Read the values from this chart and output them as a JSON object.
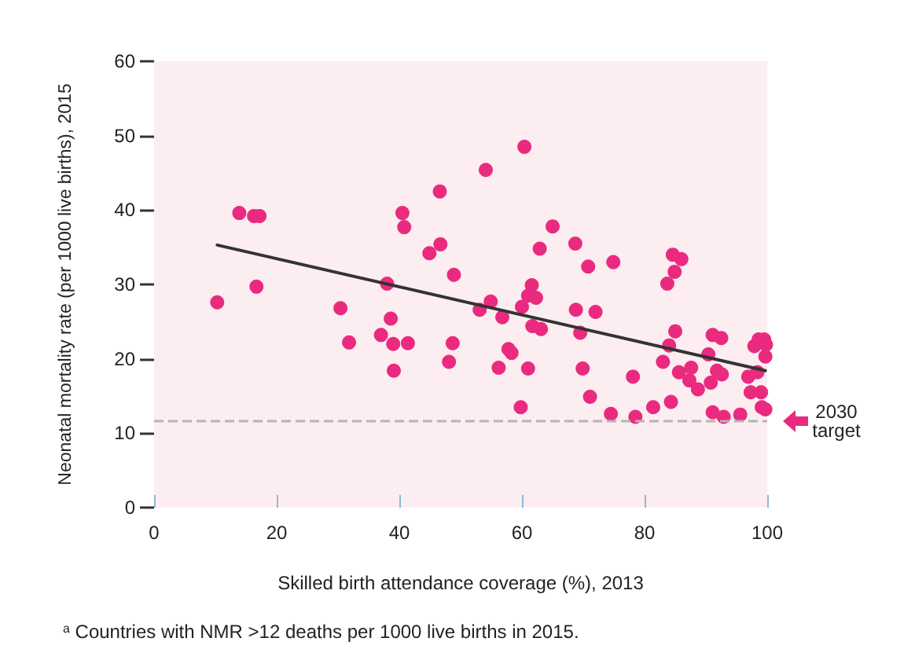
{
  "chart_data": {
    "type": "scatter",
    "xlabel": "Skilled birth attendance coverage (%), 2013",
    "ylabel": "Neonatal mortality rate (per 1000 live births), 2015",
    "xlim": [
      0,
      100
    ],
    "ylim": [
      0,
      60
    ],
    "xticks": [
      0,
      20,
      40,
      60,
      80,
      100
    ],
    "yticks": [
      0,
      10,
      20,
      30,
      40,
      50,
      60
    ],
    "grid": false,
    "marker": "circle",
    "annotations": [
      "$^{a}$ Countries with NMR >12 deaths per 1000 live births in 2015."
    ],
    "ref_lines": [
      {
        "axis": "y",
        "value": 11.6,
        "label": "2030\ntarget",
        "color": "#b4b4b4",
        "line_style": "dashed"
      }
    ],
    "series": [
      {
        "color": "#ea2a7f",
        "x": [
          10.3,
          13.9,
          16.3,
          17.2,
          16.7,
          30.4,
          31.8,
          38.0,
          38.6,
          37.0,
          39.0,
          41.4,
          39.1,
          40.5,
          40.8,
          46.6,
          46.7,
          44.9,
          48.9,
          48.7,
          48.1,
          60.4,
          54.1,
          65.0,
          62.9,
          68.7,
          70.8,
          74.9,
          61.6,
          61.0,
          62.3,
          60.0,
          54.9,
          53.1,
          56.8,
          61.7,
          63.1,
          68.8,
          72.0,
          69.5,
          57.8,
          58.3,
          56.2,
          61.0,
          69.9,
          71.1,
          59.8,
          74.5,
          78.5,
          78.1,
          81.4,
          84.3,
          83.0,
          84.0,
          85.0,
          83.7,
          84.9,
          84.6,
          86.0,
          85.6,
          87.6,
          87.3,
          88.7,
          90.4,
          91.1,
          92.5,
          90.8,
          91.8,
          92.6,
          91.1,
          92.9,
          95.6,
          96.9,
          97.3,
          99.0,
          98.4,
          97.9,
          98.6,
          99.5,
          99.8,
          99.7,
          99.1,
          99.7
        ],
        "values": [
          27.6,
          39.6,
          39.2,
          39.2,
          29.7,
          26.8,
          22.2,
          30.1,
          25.4,
          23.2,
          22.0,
          22.1,
          18.4,
          39.6,
          37.7,
          42.5,
          35.4,
          34.2,
          31.3,
          22.1,
          19.6,
          48.5,
          45.4,
          37.8,
          34.8,
          35.5,
          32.4,
          33.0,
          29.9,
          28.5,
          28.2,
          27.0,
          27.7,
          26.6,
          25.6,
          24.4,
          24.0,
          26.6,
          26.3,
          23.5,
          21.3,
          20.8,
          18.8,
          18.7,
          18.7,
          14.9,
          13.5,
          12.6,
          12.2,
          17.6,
          13.5,
          14.2,
          19.6,
          21.8,
          23.7,
          30.1,
          31.7,
          34.0,
          33.4,
          18.2,
          18.8,
          17.1,
          15.9,
          20.6,
          23.2,
          22.8,
          16.8,
          18.4,
          17.9,
          12.8,
          12.2,
          12.5,
          17.6,
          15.5,
          15.5,
          18.2,
          21.7,
          22.6,
          22.6,
          21.9,
          20.3,
          13.5,
          13.2
        ]
      },
      {
        "type": "line",
        "color": "#333333",
        "marker": "none",
        "line_style": "solid",
        "x": [
          10.3,
          99.7
        ],
        "values": [
          35.3,
          18.4
        ]
      }
    ]
  }
}
